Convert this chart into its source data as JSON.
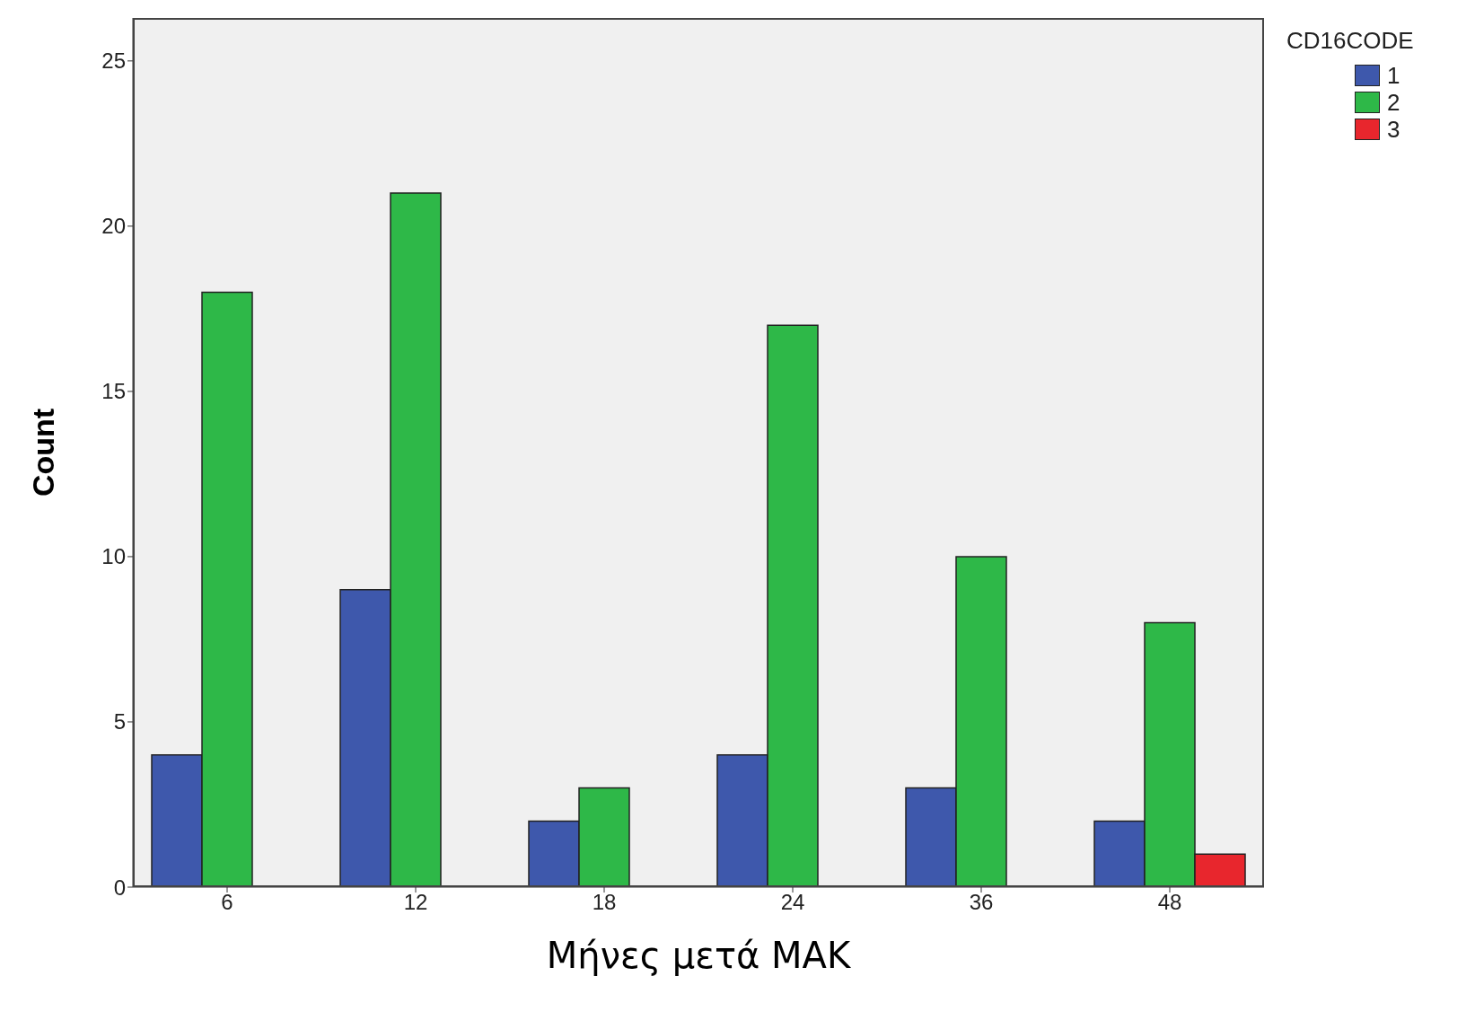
{
  "chart_data": {
    "type": "bar",
    "xlabel": "Μήνες μετά MAK",
    "ylabel": "Count",
    "legend_title": "CD16CODE",
    "legend": "top right",
    "categories": [
      "6",
      "12",
      "18",
      "24",
      "36",
      "48"
    ],
    "ylim": [
      0,
      26.3
    ],
    "yticks": [
      0,
      5,
      10,
      15,
      20,
      25
    ],
    "series": [
      {
        "name": "1",
        "color": "#3e58ac",
        "values": [
          4,
          9,
          2,
          4,
          3,
          2
        ]
      },
      {
        "name": "2",
        "color": "#2eb848",
        "values": [
          18,
          21,
          3,
          17,
          10,
          8
        ]
      },
      {
        "name": "3",
        "color": "#e8262d",
        "values": [
          0,
          0,
          0,
          0,
          0,
          1
        ]
      }
    ]
  }
}
